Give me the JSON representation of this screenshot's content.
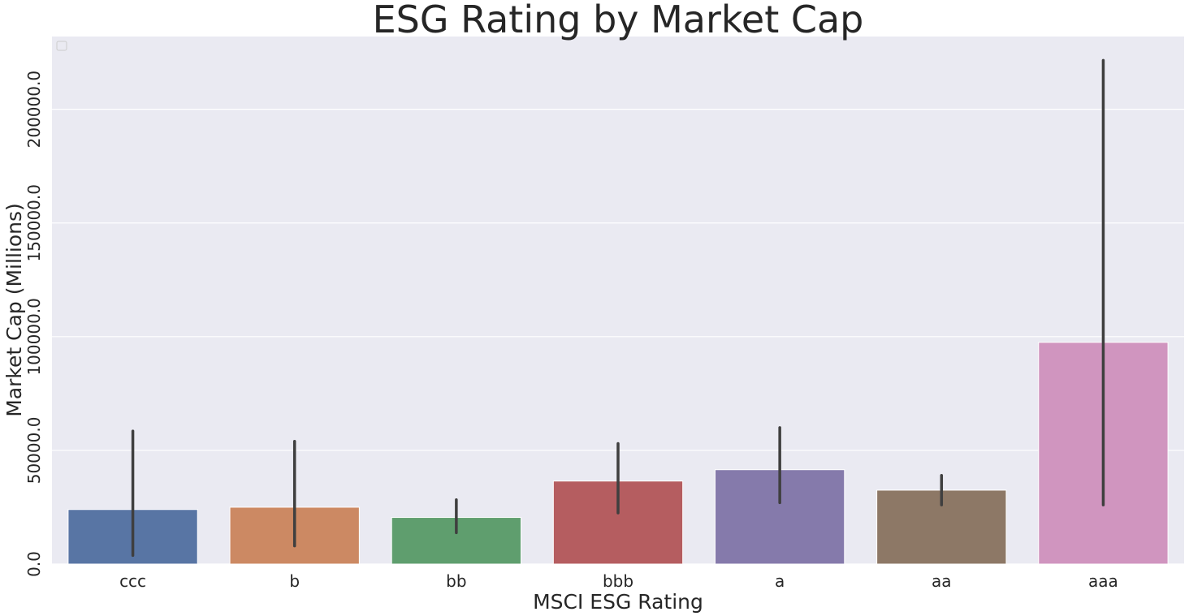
{
  "chart_data": {
    "type": "bar",
    "title": "ESG Rating by Market Cap",
    "xlabel": "MSCI ESG Rating",
    "ylabel": "Market Cap (Millions)",
    "categories": [
      "ccc",
      "b",
      "bb",
      "bbb",
      "a",
      "aa",
      "aaa"
    ],
    "values": [
      24000,
      25000,
      20500,
      36500,
      41500,
      32500,
      97500
    ],
    "error_bars": [
      {
        "low": 3800,
        "high": 58500
      },
      {
        "low": 8000,
        "high": 54000
      },
      {
        "low": 13800,
        "high": 28300
      },
      {
        "low": 22500,
        "high": 53000
      },
      {
        "low": 27000,
        "high": 60000
      },
      {
        "low": 26000,
        "high": 39000
      },
      {
        "low": 26000,
        "high": 221500
      }
    ],
    "colors": [
      "#5875a4",
      "#cc8963",
      "#5f9e6e",
      "#b55d60",
      "#857aab",
      "#8d7866",
      "#d095bf"
    ],
    "yticks": [
      0,
      50000,
      100000,
      150000,
      200000
    ],
    "ytick_labels": [
      "0.0",
      "50000.0",
      "100000.0",
      "150000.0",
      "200000.0"
    ],
    "ylim": [
      0,
      232000
    ],
    "grid": true,
    "legend": "top-left (empty)",
    "background": "#eaeaf2",
    "error_color": "#3f3f3f"
  }
}
